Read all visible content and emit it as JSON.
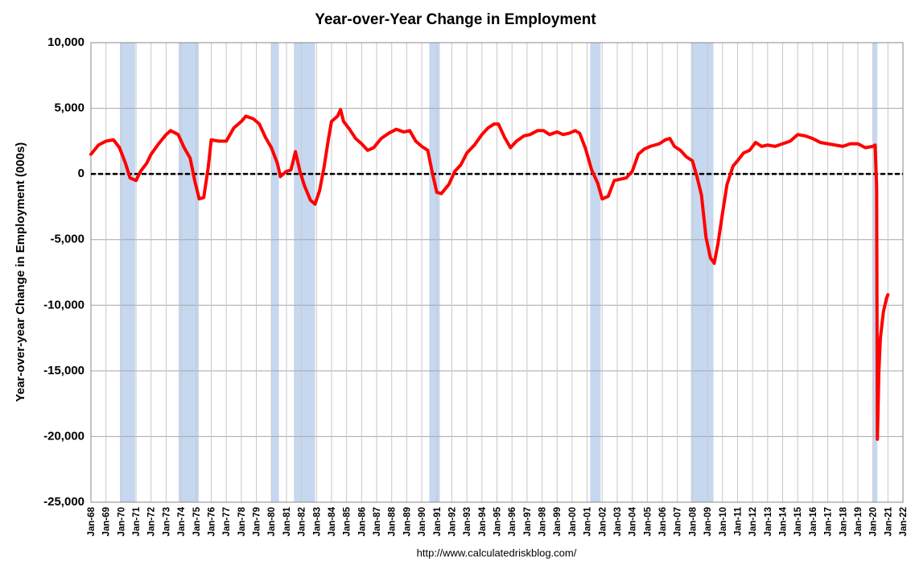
{
  "chart_data": {
    "type": "line",
    "title": "Year-over-Year Change in Employment",
    "y_label": "Year-over-year Change in Employment (000s)",
    "source": "http://www.calculatedriskblog.com/",
    "grid": true,
    "reference_line": 0,
    "recession_color": "#c6d7f0",
    "recessions": [
      [
        1969.93,
        1970.94
      ],
      [
        1973.83,
        1975.17
      ],
      [
        1980.0,
        1980.5
      ],
      [
        1981.5,
        1982.9
      ],
      [
        1990.5,
        1991.2
      ],
      [
        2001.2,
        2001.9
      ],
      [
        2007.9,
        2009.4
      ],
      [
        2020.0,
        2020.3
      ]
    ],
    "xlim": [
      1968,
      2022
    ],
    "ylim": [
      -25000,
      10000
    ],
    "yticks": [
      {
        "value": -25000,
        "label": "-25,000"
      },
      {
        "value": -20000,
        "label": "-20,000"
      },
      {
        "value": -15000,
        "label": "-15,000"
      },
      {
        "value": -10000,
        "label": "-10,000"
      },
      {
        "value": -5000,
        "label": "-5,000"
      },
      0,
      {
        "value": 5000,
        "label": "5,000"
      },
      {
        "value": 10000,
        "label": "10,000"
      }
    ],
    "xticks": [
      {
        "value": 1968,
        "label": "Jan-68"
      },
      {
        "value": 1969,
        "label": "Jan-69"
      },
      {
        "value": 1970,
        "label": "Jan-70"
      },
      {
        "value": 1971,
        "label": "Jan-71"
      },
      {
        "value": 1972,
        "label": "Jan-72"
      },
      {
        "value": 1973,
        "label": "Jan-73"
      },
      {
        "value": 1974,
        "label": "Jan-74"
      },
      {
        "value": 1975,
        "label": "Jan-75"
      },
      {
        "value": 1976,
        "label": "Jan-76"
      },
      {
        "value": 1977,
        "label": "Jan-77"
      },
      {
        "value": 1978,
        "label": "Jan-78"
      },
      {
        "value": 1979,
        "label": "Jan-79"
      },
      {
        "value": 1980,
        "label": "Jan-80"
      },
      {
        "value": 1981,
        "label": "Jan-81"
      },
      {
        "value": 1982,
        "label": "Jan-82"
      },
      {
        "value": 1983,
        "label": "Jan-83"
      },
      {
        "value": 1984,
        "label": "Jan-84"
      },
      {
        "value": 1985,
        "label": "Jan-85"
      },
      {
        "value": 1986,
        "label": "Jan-86"
      },
      {
        "value": 1987,
        "label": "Jan-87"
      },
      {
        "value": 1988,
        "label": "Jan-88"
      },
      {
        "value": 1989,
        "label": "Jan-89"
      },
      {
        "value": 1990,
        "label": "Jan-90"
      },
      {
        "value": 1991,
        "label": "Jan-91"
      },
      {
        "value": 1992,
        "label": "Jan-92"
      },
      {
        "value": 1993,
        "label": "Jan-93"
      },
      {
        "value": 1994,
        "label": "Jan-94"
      },
      {
        "value": 1995,
        "label": "Jan-95"
      },
      {
        "value": 1996,
        "label": "Jan-96"
      },
      {
        "value": 1997,
        "label": "Jan-97"
      },
      {
        "value": 1998,
        "label": "Jan-98"
      },
      {
        "value": 1999,
        "label": "Jan-99"
      },
      {
        "value": 2000,
        "label": "Jan-00"
      },
      {
        "value": 2001,
        "label": "Jan-01"
      },
      {
        "value": 2002,
        "label": "Jan-02"
      },
      {
        "value": 2003,
        "label": "Jan-03"
      },
      {
        "value": 2004,
        "label": "Jan-04"
      },
      {
        "value": 2005,
        "label": "Jan-05"
      },
      {
        "value": 2006,
        "label": "Jan-06"
      },
      {
        "value": 2007,
        "label": "Jan-07"
      },
      {
        "value": 2008,
        "label": "Jan-08"
      },
      {
        "value": 2009,
        "label": "Jan-09"
      },
      {
        "value": 2010,
        "label": "Jan-10"
      },
      {
        "value": 2011,
        "label": "Jan-11"
      },
      {
        "value": 2012,
        "label": "Jan-12"
      },
      {
        "value": 2013,
        "label": "Jan-13"
      },
      {
        "value": 2014,
        "label": "Jan-14"
      },
      {
        "value": 2015,
        "label": "Jan-15"
      },
      {
        "value": 2016,
        "label": "Jan-16"
      },
      {
        "value": 2017,
        "label": "Jan-17"
      },
      {
        "value": 2018,
        "label": "Jan-18"
      },
      {
        "value": 2019,
        "label": "Jan-19"
      },
      {
        "value": 2020,
        "label": "Jan-20"
      },
      {
        "value": 2021,
        "label": "Jan-21"
      },
      {
        "value": 2022,
        "label": "Jan-22"
      }
    ],
    "x": [
      1968.0,
      1968.5,
      1969.0,
      1969.5,
      1969.9,
      1970.3,
      1970.6,
      1971.0,
      1971.3,
      1971.7,
      1972.0,
      1972.5,
      1973.0,
      1973.3,
      1973.8,
      1974.2,
      1974.6,
      1974.9,
      1975.2,
      1975.5,
      1975.8,
      1976.0,
      1976.5,
      1977.0,
      1977.5,
      1978.0,
      1978.3,
      1978.8,
      1979.2,
      1979.6,
      1980.0,
      1980.4,
      1980.6,
      1981.0,
      1981.3,
      1981.6,
      1981.9,
      1982.2,
      1982.6,
      1982.9,
      1983.2,
      1983.5,
      1983.8,
      1984.0,
      1984.4,
      1984.6,
      1984.8,
      1985.2,
      1985.6,
      1986.0,
      1986.4,
      1986.8,
      1987.3,
      1987.8,
      1988.3,
      1988.8,
      1989.2,
      1989.6,
      1990.0,
      1990.4,
      1990.7,
      1991.0,
      1991.3,
      1991.8,
      1992.2,
      1992.6,
      1993.0,
      1993.5,
      1994.0,
      1994.4,
      1994.8,
      1995.1,
      1995.5,
      1995.9,
      1996.3,
      1996.8,
      1997.2,
      1997.7,
      1998.1,
      1998.5,
      1999.0,
      1999.4,
      1999.8,
      2000.2,
      2000.5,
      2000.9,
      2001.3,
      2001.7,
      2002.0,
      2002.4,
      2002.8,
      2003.2,
      2003.6,
      2004.0,
      2004.4,
      2004.8,
      2005.2,
      2005.5,
      2005.8,
      2006.2,
      2006.5,
      2006.8,
      2007.2,
      2007.6,
      2008.0,
      2008.3,
      2008.6,
      2008.9,
      2009.2,
      2009.45,
      2009.7,
      2010.0,
      2010.3,
      2010.7,
      2011.0,
      2011.4,
      2011.8,
      2012.2,
      2012.6,
      2013.0,
      2013.5,
      2014.0,
      2014.5,
      2015.0,
      2015.5,
      2016.0,
      2016.5,
      2017.0,
      2017.5,
      2018.0,
      2018.5,
      2019.0,
      2019.5,
      2020.0,
      2020.15,
      2020.25,
      2020.3,
      2020.4,
      2020.5,
      2020.7,
      2020.9,
      2021.0
    ],
    "series": [
      {
        "name": "Year-over-year change",
        "color": "#ff0000",
        "values": [
          1500,
          2200,
          2500,
          2600,
          2000,
          800,
          -300,
          -500,
          200,
          800,
          1500,
          2300,
          3000,
          3300,
          3000,
          2000,
          1200,
          -500,
          -1900,
          -1800,
          500,
          2600,
          2500,
          2500,
          3500,
          4000,
          4400,
          4200,
          3800,
          2800,
          2000,
          800,
          -200,
          200,
          300,
          1700,
          200,
          -900,
          -2000,
          -2300,
          -1300,
          500,
          2700,
          4000,
          4400,
          4900,
          4000,
          3400,
          2700,
          2300,
          1800,
          2000,
          2700,
          3100,
          3400,
          3200,
          3300,
          2500,
          2100,
          1800,
          100,
          -1400,
          -1500,
          -800,
          200,
          700,
          1600,
          2200,
          3000,
          3500,
          3800,
          3800,
          2800,
          2000,
          2500,
          2900,
          3000,
          3300,
          3300,
          3000,
          3200,
          3000,
          3100,
          3300,
          3100,
          1900,
          300,
          -700,
          -1900,
          -1700,
          -500,
          -400,
          -300,
          200,
          1500,
          1900,
          2100,
          2200,
          2300,
          2600,
          2700,
          2100,
          1800,
          1300,
          1000,
          -200,
          -1600,
          -4800,
          -6400,
          -6800,
          -5300,
          -3000,
          -800,
          600,
          1000,
          1600,
          1800,
          2400,
          2100,
          2200,
          2100,
          2300,
          2500,
          3000,
          2900,
          2700,
          2400,
          2300,
          2200,
          2100,
          2300,
          2300,
          2000,
          2100,
          2200,
          -1000,
          -20200,
          -15000,
          -12500,
          -10500,
          -9500,
          -9200
        ]
      }
    ]
  }
}
